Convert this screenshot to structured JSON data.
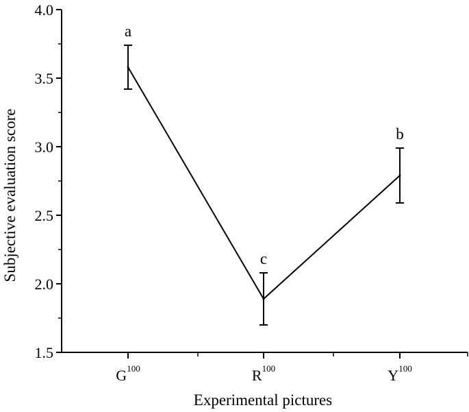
{
  "chart_data": {
    "type": "line",
    "xlabel": "Experimental pictures",
    "ylabel": "Subjective evaluation score",
    "ylim": [
      1.5,
      4.0
    ],
    "yticks": [
      "1.5",
      "2.0",
      "2.5",
      "3.0",
      "3.5",
      "4.0"
    ],
    "categories": [
      {
        "base": "G",
        "sup": "100"
      },
      {
        "base": "R",
        "sup": "100"
      },
      {
        "base": "Y",
        "sup": "100"
      }
    ],
    "series": [
      {
        "values": [
          3.58,
          1.89,
          2.79
        ],
        "err_low": [
          3.42,
          1.7,
          2.59
        ],
        "err_high": [
          3.74,
          2.08,
          2.99
        ],
        "labels": [
          "a",
          "c",
          "b"
        ],
        "color": "#000000"
      }
    ],
    "grid": false,
    "legend": "none"
  }
}
